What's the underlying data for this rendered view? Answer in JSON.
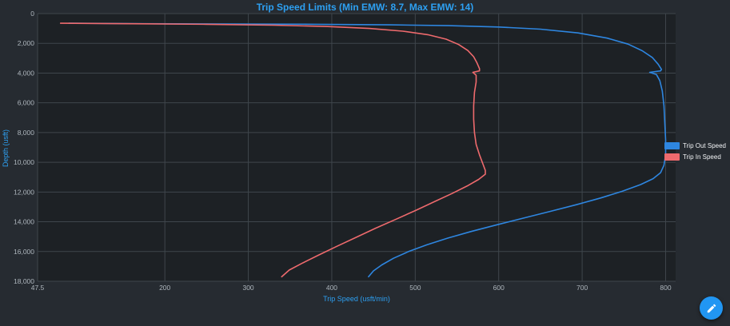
{
  "colors": {
    "title": "#2da0f2",
    "axis_label": "#2da0f2",
    "tick_text": "#aeb6bd",
    "grid": "#3f464c",
    "plot_bg": "#1d2125",
    "outer_bg": "#262b31",
    "fab": "#2196f3"
  },
  "fab": {
    "icon": "pencil-icon"
  },
  "chart_data": {
    "type": "line",
    "title": "Trip Speed Limits (Min EMW: 8.7, Max EMW: 14)",
    "xlabel": "Trip Speed (usft/min)",
    "ylabel": "Depth (usft)",
    "grid": true,
    "legend_position": "right",
    "x_axis": {
      "min": 47.5,
      "max": 812,
      "ticks": [
        {
          "v": 47.5,
          "label": "47.5"
        },
        {
          "v": 200,
          "label": "200"
        },
        {
          "v": 300,
          "label": "300"
        },
        {
          "v": 400,
          "label": "400"
        },
        {
          "v": 500,
          "label": "500"
        },
        {
          "v": 600,
          "label": "600"
        },
        {
          "v": 700,
          "label": "700"
        },
        {
          "v": 800,
          "label": "800"
        }
      ]
    },
    "y_axis": {
      "min": 0,
      "max": 18000,
      "inverted": true,
      "ticks": [
        {
          "v": 0,
          "label": "0"
        },
        {
          "v": 2000,
          "label": "2,000"
        },
        {
          "v": 4000,
          "label": "4,000"
        },
        {
          "v": 6000,
          "label": "6,000"
        },
        {
          "v": 8000,
          "label": "8,000"
        },
        {
          "v": 10000,
          "label": "10,000"
        },
        {
          "v": 12000,
          "label": "12,000"
        },
        {
          "v": 14000,
          "label": "14,000"
        },
        {
          "v": 16000,
          "label": "16,000"
        },
        {
          "v": 18000,
          "label": "18,000"
        }
      ]
    },
    "series": [
      {
        "name": "Trip Out Speed",
        "color": "#2e86e0",
        "points": [
          [
            85,
            650
          ],
          [
            180,
            680
          ],
          [
            280,
            700
          ],
          [
            380,
            720
          ],
          [
            470,
            760
          ],
          [
            540,
            810
          ],
          [
            600,
            900
          ],
          [
            650,
            1050
          ],
          [
            695,
            1300
          ],
          [
            730,
            1650
          ],
          [
            755,
            2050
          ],
          [
            772,
            2500
          ],
          [
            784,
            2950
          ],
          [
            791,
            3400
          ],
          [
            795,
            3750
          ],
          [
            794,
            3850
          ],
          [
            781,
            3950
          ],
          [
            789,
            4100
          ],
          [
            793,
            4500
          ],
          [
            796,
            5200
          ],
          [
            798,
            6200
          ],
          [
            799,
            7300
          ],
          [
            800,
            8500
          ],
          [
            800,
            9500
          ],
          [
            798,
            10200
          ],
          [
            794,
            10700
          ],
          [
            785,
            11100
          ],
          [
            770,
            11500
          ],
          [
            748,
            11950
          ],
          [
            722,
            12400
          ],
          [
            693,
            12850
          ],
          [
            662,
            13300
          ],
          [
            630,
            13750
          ],
          [
            598,
            14200
          ],
          [
            567,
            14650
          ],
          [
            539,
            15100
          ],
          [
            514,
            15550
          ],
          [
            492,
            16000
          ],
          [
            474,
            16450
          ],
          [
            460,
            16900
          ],
          [
            450,
            17300
          ],
          [
            444,
            17700
          ]
        ]
      },
      {
        "name": "Trip In Speed",
        "color": "#ee6a6d",
        "points": [
          [
            75,
            650
          ],
          [
            160,
            680
          ],
          [
            250,
            720
          ],
          [
            330,
            780
          ],
          [
            395,
            870
          ],
          [
            445,
            1000
          ],
          [
            485,
            1180
          ],
          [
            515,
            1420
          ],
          [
            537,
            1720
          ],
          [
            552,
            2080
          ],
          [
            563,
            2480
          ],
          [
            570,
            2900
          ],
          [
            574,
            3320
          ],
          [
            577,
            3700
          ],
          [
            577,
            3850
          ],
          [
            569,
            3950
          ],
          [
            573,
            4150
          ],
          [
            573,
            4600
          ],
          [
            571,
            5300
          ],
          [
            570,
            6200
          ],
          [
            570,
            7100
          ],
          [
            571,
            8000
          ],
          [
            573,
            8800
          ],
          [
            577,
            9500
          ],
          [
            581,
            10100
          ],
          [
            584,
            10550
          ],
          [
            584,
            10800
          ],
          [
            576,
            11150
          ],
          [
            562,
            11600
          ],
          [
            544,
            12100
          ],
          [
            523,
            12650
          ],
          [
            500,
            13250
          ],
          [
            476,
            13850
          ],
          [
            452,
            14450
          ],
          [
            429,
            15050
          ],
          [
            406,
            15650
          ],
          [
            384,
            16250
          ],
          [
            364,
            16800
          ],
          [
            349,
            17250
          ],
          [
            340,
            17700
          ]
        ]
      }
    ]
  }
}
